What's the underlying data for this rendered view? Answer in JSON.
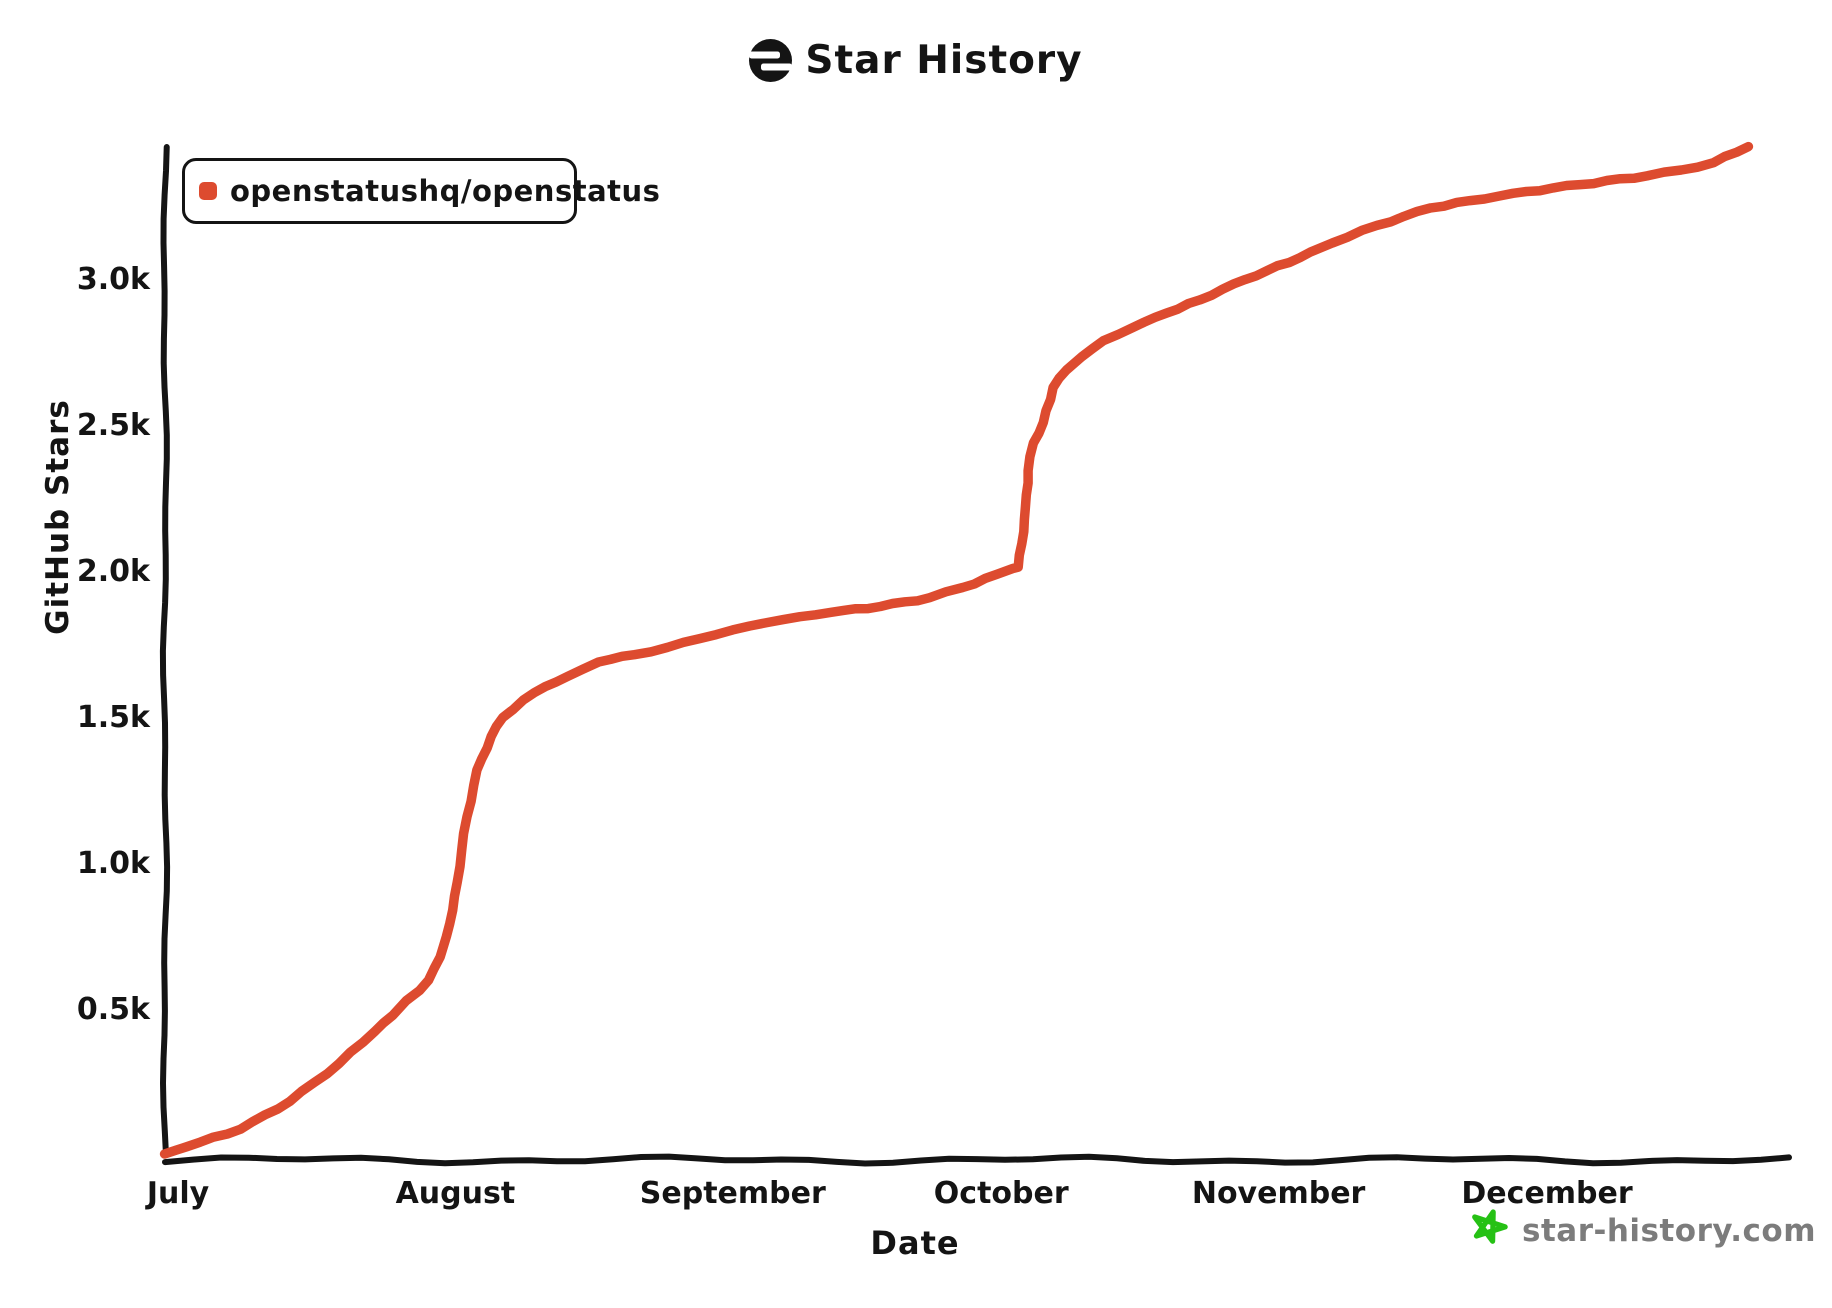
{
  "header": {
    "title": "Star History"
  },
  "legend": {
    "series_label": "openstatushq/openstatus"
  },
  "watermark": {
    "text": "star-history.com",
    "star_color": "#26C115",
    "text_color": "#7C7C7C"
  },
  "colors": {
    "series": "#DD4B2F",
    "axis": "#141414",
    "text": "#141414"
  },
  "chart_data": {
    "type": "line",
    "title": "Star History",
    "xlabel": "Date",
    "ylabel": "GitHub Stars",
    "grid": false,
    "legend_position": "top-left",
    "x_unit": "days_since_july_1",
    "x_range_days": [
      -1.5,
      182.6
    ],
    "y_range": [
      0,
      3450
    ],
    "x_ticks": [
      {
        "label": "July",
        "day": 0
      },
      {
        "label": "August",
        "day": 31
      },
      {
        "label": "September",
        "day": 62
      },
      {
        "label": "October",
        "day": 92
      },
      {
        "label": "November",
        "day": 123
      },
      {
        "label": "December",
        "day": 153
      }
    ],
    "y_ticks": [
      {
        "label": "0.5k",
        "value": 500
      },
      {
        "label": "1.0k",
        "value": 1000
      },
      {
        "label": "1.5k",
        "value": 1500
      },
      {
        "label": "2.0k",
        "value": 2000
      },
      {
        "label": "2.5k",
        "value": 2500
      },
      {
        "label": "3.0k",
        "value": 3000
      }
    ],
    "series": [
      {
        "name": "openstatushq/openstatus",
        "color": "#DD4B2F",
        "points": [
          [
            -1.5,
            0
          ],
          [
            1,
            25
          ],
          [
            7,
            85
          ],
          [
            12.5,
            180
          ],
          [
            18,
            310
          ],
          [
            22,
            420
          ],
          [
            24,
            475
          ],
          [
            25.5,
            525
          ],
          [
            27,
            560
          ],
          [
            28,
            595
          ],
          [
            29.3,
            675
          ],
          [
            30,
            745
          ],
          [
            30.7,
            835
          ],
          [
            31.2,
            930
          ],
          [
            31.7,
            1040
          ],
          [
            32.3,
            1155
          ],
          [
            33.4,
            1315
          ],
          [
            35,
            1430
          ],
          [
            36.3,
            1495
          ],
          [
            38.6,
            1555
          ],
          [
            41,
            1600
          ],
          [
            43.5,
            1635
          ],
          [
            47,
            1685
          ],
          [
            51,
            1710
          ],
          [
            54.7,
            1735
          ],
          [
            58.3,
            1765
          ],
          [
            62,
            1795
          ],
          [
            65.8,
            1820
          ],
          [
            69.5,
            1840
          ],
          [
            73,
            1855
          ],
          [
            78.5,
            1875
          ],
          [
            84,
            1905
          ],
          [
            87.7,
            1940
          ],
          [
            91.5,
            1985
          ],
          [
            93.3,
            2005
          ],
          [
            93.9,
            2010
          ],
          [
            94.3,
            2090
          ],
          [
            94.7,
            2215
          ],
          [
            95,
            2340
          ],
          [
            95.6,
            2435
          ],
          [
            96.7,
            2505
          ],
          [
            97.8,
            2625
          ],
          [
            99.3,
            2685
          ],
          [
            101,
            2730
          ],
          [
            103.4,
            2785
          ],
          [
            106.7,
            2830
          ],
          [
            110.5,
            2880
          ],
          [
            114.2,
            2925
          ],
          [
            118,
            2980
          ],
          [
            121.7,
            3025
          ],
          [
            125.4,
            3070
          ],
          [
            129,
            3120
          ],
          [
            134,
            3180
          ],
          [
            140,
            3240
          ],
          [
            144.4,
            3265
          ],
          [
            149.2,
            3290
          ],
          [
            156.7,
            3320
          ],
          [
            164.2,
            3350
          ],
          [
            168,
            3370
          ],
          [
            171.6,
            3395
          ],
          [
            175.5,
            3450
          ]
        ]
      }
    ]
  }
}
